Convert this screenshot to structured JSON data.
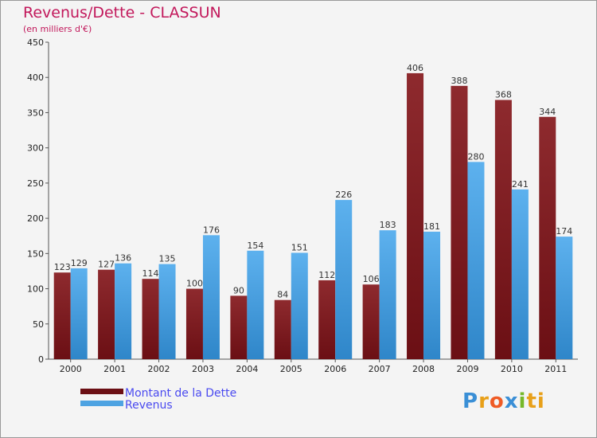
{
  "title": "Revenus/Dette - CLASSUN",
  "subtitle": "(en milliers d'€)",
  "logo": {
    "text": "Proxiti",
    "letters": [
      "P",
      "r",
      "o",
      "x",
      "i",
      "ti"
    ]
  },
  "colors": {
    "dette": "#6b0f14",
    "revenus": "#4ea3e2",
    "title": "#c2185b",
    "legend_text": "#4a4af0"
  },
  "chart_data": {
    "type": "bar",
    "title": "Revenus/Dette - CLASSUN",
    "subtitle": "(en milliers d'€)",
    "categories": [
      "2000",
      "2001",
      "2002",
      "2003",
      "2004",
      "2005",
      "2006",
      "2007",
      "2008",
      "2009",
      "2010",
      "2011"
    ],
    "series": [
      {
        "name": "Montant de la Dette",
        "values": [
          123,
          127,
          114,
          100,
          90,
          84,
          112,
          106,
          406,
          388,
          368,
          344
        ]
      },
      {
        "name": "Revenus",
        "values": [
          129,
          136,
          135,
          176,
          154,
          151,
          226,
          183,
          181,
          280,
          241,
          174
        ]
      }
    ],
    "ylim": [
      0,
      450
    ],
    "yticks": [
      0,
      50,
      100,
      150,
      200,
      250,
      300,
      350,
      400,
      450
    ],
    "grid": false,
    "legend_position": "bottom-left"
  }
}
